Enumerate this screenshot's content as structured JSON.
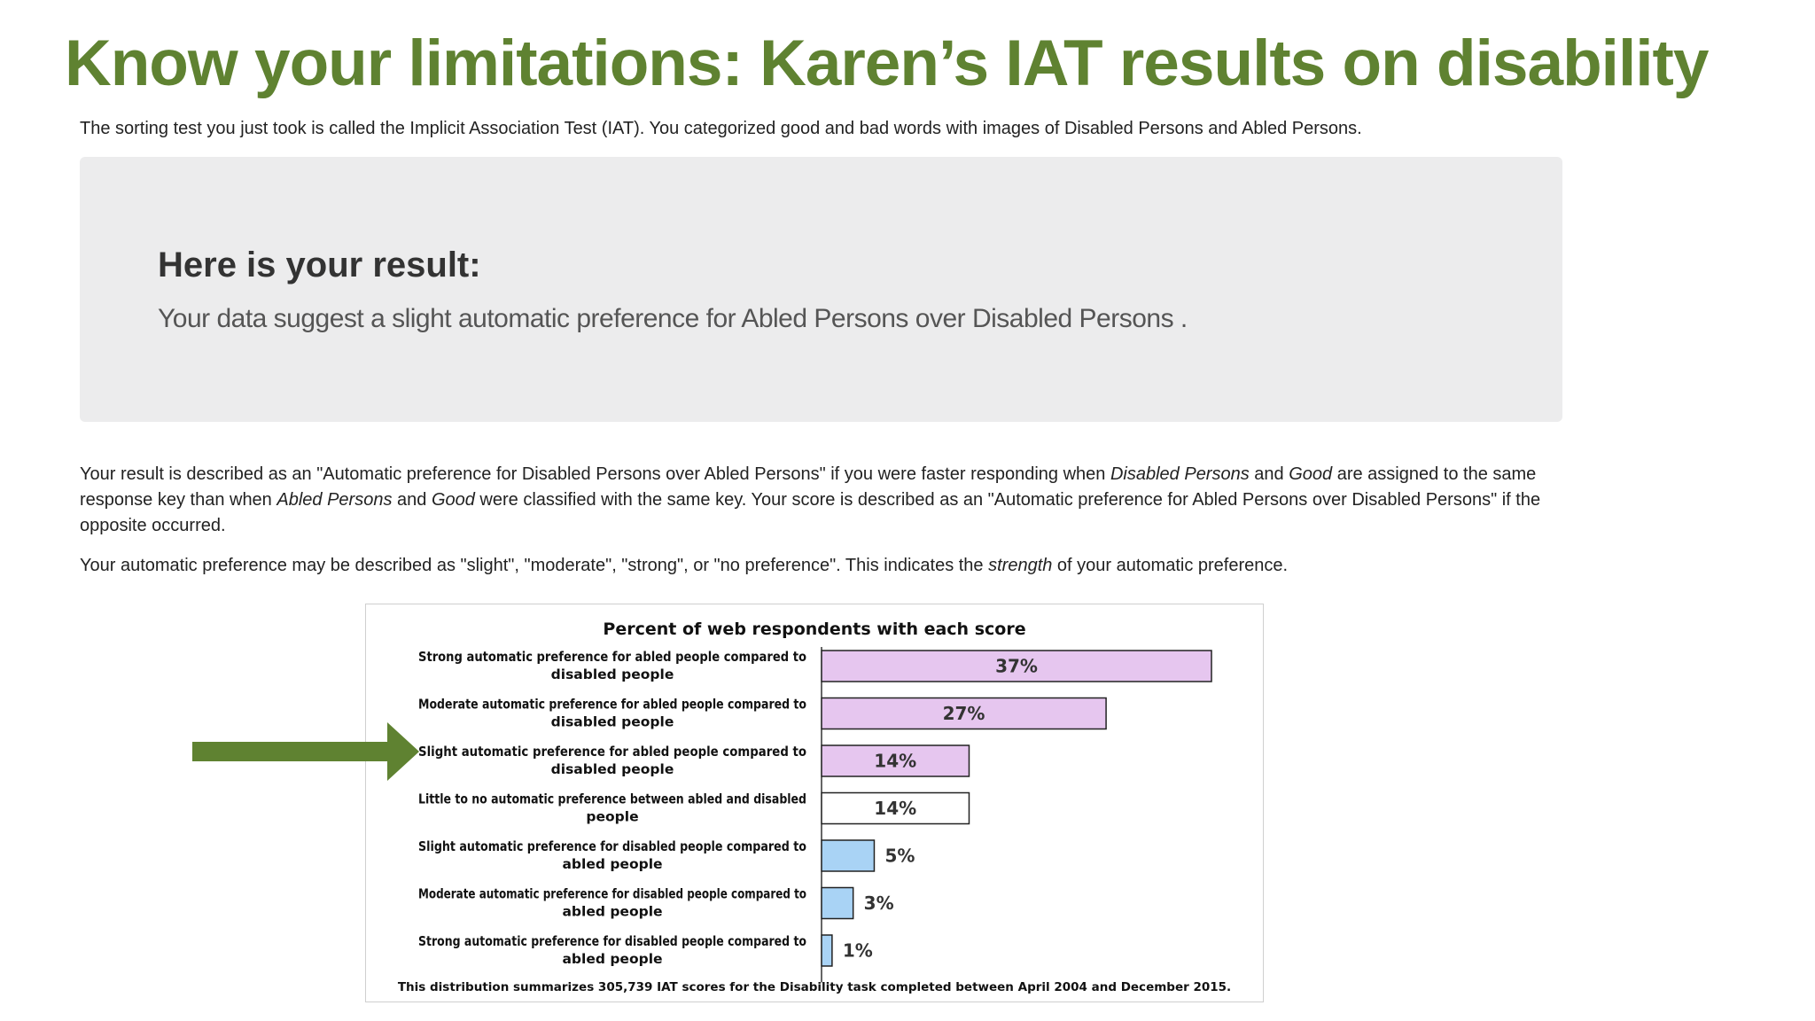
{
  "slide": {
    "title": "Know your limitations: Karen’s IAT results on disability",
    "accent_color": "#5f8231"
  },
  "intro": {
    "text": "The sorting test you just took is called the Implicit Association Test (IAT). You categorized good and bad words with images of Disabled Persons and Abled Persons."
  },
  "result": {
    "heading": "Here is your result:",
    "text": "Your data suggest a slight automatic preference for Abled Persons over Disabled Persons ."
  },
  "description": {
    "p1_a": "Your result is described as an \"Automatic preference for Disabled Persons over Abled Persons\" if you were faster responding when ",
    "p1_b": "Disabled Persons",
    "p1_c": " and ",
    "p1_d": "Good",
    "p1_e": " are assigned to the same response key than when ",
    "p1_f": "Abled Persons",
    "p1_g": " and ",
    "p1_h": "Good",
    "p1_i": " were classified with the same key. Your score is described as an \"Automatic preference for Abled Persons over Disabled Persons\" if the opposite occurred.",
    "p2_a": "Your automatic preference may be described as \"slight\", \"moderate\", \"strong\", or \"no preference\". This indicates the ",
    "p2_b": "strength",
    "p2_c": " of your automatic preference."
  },
  "chart_data": {
    "type": "bar",
    "orientation": "horizontal",
    "title": "Percent of web respondents with each score",
    "footnote": "This distribution summarizes 305,739 IAT scores for the Disability  task completed between April 2004 and December 2015.",
    "categories": [
      [
        "Strong automatic preference for abled people compared to",
        "disabled people"
      ],
      [
        "Moderate automatic preference for abled people compared to",
        "disabled people"
      ],
      [
        "Slight automatic preference for abled people compared to",
        "disabled people"
      ],
      [
        "Little to no automatic preference between abled and disabled",
        "people"
      ],
      [
        "Slight automatic preference for disabled people compared to",
        "abled people"
      ],
      [
        "Moderate automatic preference for disabled people compared to",
        "abled people"
      ],
      [
        "Strong automatic preference for disabled people compared to",
        "abled people"
      ]
    ],
    "values": [
      37,
      27,
      14,
      14,
      5,
      3,
      1
    ],
    "value_labels": [
      "37%",
      "27%",
      "14%",
      "14%",
      "5%",
      "3%",
      "1%"
    ],
    "bar_colors": [
      "#e6c6ef",
      "#e6c6ef",
      "#e6c6ef",
      "#ffffff",
      "#a9d3f5",
      "#a9d3f5",
      "#a9d3f5"
    ],
    "highlighted_category_index": 2,
    "grid": false,
    "xlim": [
      0,
      37
    ]
  }
}
